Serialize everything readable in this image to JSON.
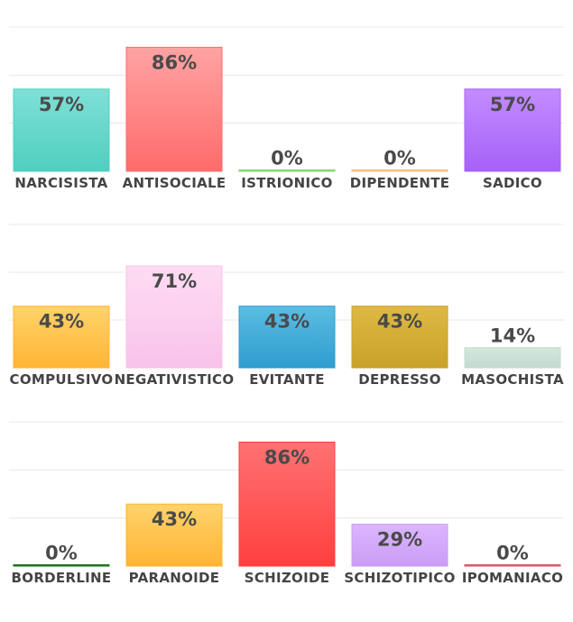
{
  "chart_data": [
    {
      "type": "bar",
      "categories": [
        "NARCISISTA",
        "ANTISOCIALE",
        "ISTRIONICO",
        "DIPENDENTE",
        "SADICO"
      ],
      "values": [
        57,
        86,
        0,
        0,
        57
      ],
      "value_labels": [
        "57%",
        "86%",
        "0%",
        "0%",
        "57%"
      ],
      "colors": [
        [
          "#7fe0d6",
          "#4fcfbf"
        ],
        [
          "#ffa3a3",
          "#ff6b6b"
        ],
        [
          "#a8e89a",
          "#7fd66a"
        ],
        [
          "#ffd7a8",
          "#ffbb77"
        ],
        [
          "#c38cff",
          "#a661f7"
        ]
      ],
      "ylim": [
        0,
        100
      ],
      "grid": true
    },
    {
      "type": "bar",
      "categories": [
        "COMPULSIVO",
        "NEGATIVISTICO",
        "EVITANTE",
        "DEPRESSO",
        "MASOCHISTA"
      ],
      "values": [
        43,
        71,
        43,
        43,
        14
      ],
      "value_labels": [
        "43%",
        "71%",
        "43%",
        "43%",
        "14%"
      ],
      "colors": [
        [
          "#ffd36b",
          "#ffb534"
        ],
        [
          "#ffdcf3",
          "#f8c2ea"
        ],
        [
          "#5bbde3",
          "#2f9dcf"
        ],
        [
          "#ddb944",
          "#c9a229"
        ],
        [
          "#d4e7dd",
          "#c2dbcf"
        ]
      ],
      "ylim": [
        0,
        100
      ],
      "grid": true
    },
    {
      "type": "bar",
      "categories": [
        "BORDERLINE",
        "PARANOIDE",
        "SCHIZOIDE",
        "SCHIZOTIPICO",
        "IPOMANIACO"
      ],
      "values": [
        0,
        43,
        86,
        29,
        0
      ],
      "value_labels": [
        "0%",
        "43%",
        "86%",
        "29%",
        "0%"
      ],
      "colors": [
        [
          "#2e8b2e",
          "#1f6f1f"
        ],
        [
          "#ffd36b",
          "#ffb534"
        ],
        [
          "#ff7272",
          "#ff3f3f"
        ],
        [
          "#dcb6ff",
          "#c99cf5"
        ],
        [
          "#e87a8a",
          "#d9536a"
        ]
      ],
      "ylim": [
        0,
        100
      ],
      "grid": true
    }
  ]
}
